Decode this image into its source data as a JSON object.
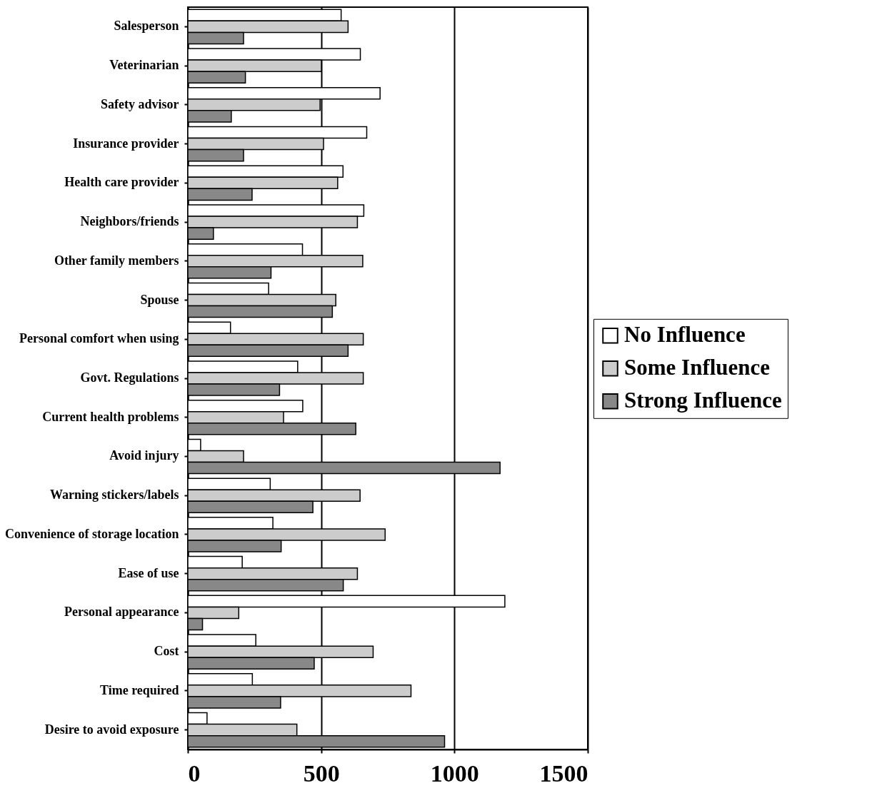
{
  "chart_data": {
    "type": "bar",
    "orientation": "horizontal",
    "categories": [
      "Salesperson",
      "Veterinarian",
      "Safety advisor",
      "Insurance provider",
      "Health care provider",
      "Neighbors/friends",
      "Other family members",
      "Spouse",
      "Personal comfort when using",
      "Govt. Regulations",
      "Current health problems",
      "Avoid injury",
      "Warning stickers/labels",
      "Convenience of storage location",
      "Ease of use",
      "Personal appearance",
      "Cost",
      "Time required",
      "Desire to avoid exposure"
    ],
    "series": [
      {
        "name": "No Influence",
        "color": "#ffffff",
        "values": [
          575,
          647,
          721,
          671,
          582,
          660,
          430,
          303,
          160,
          412,
          431,
          48,
          309,
          319,
          204,
          1189,
          255,
          242,
          72
        ]
      },
      {
        "name": "Some Influence",
        "color": "#cccccc",
        "values": [
          601,
          501,
          496,
          509,
          562,
          636,
          656,
          555,
          658,
          658,
          359,
          209,
          646,
          740,
          636,
          191,
          695,
          837,
          409
        ]
      },
      {
        "name": "Strong Influence",
        "color": "#888888",
        "values": [
          209,
          216,
          163,
          209,
          241,
          96,
          312,
          542,
          601,
          344,
          630,
          1171,
          469,
          350,
          583,
          55,
          474,
          348,
          963
        ]
      }
    ],
    "xlim": [
      0,
      1500
    ],
    "xticks": [
      0,
      500,
      1000,
      1500
    ],
    "grid": "x",
    "legend": "right"
  }
}
